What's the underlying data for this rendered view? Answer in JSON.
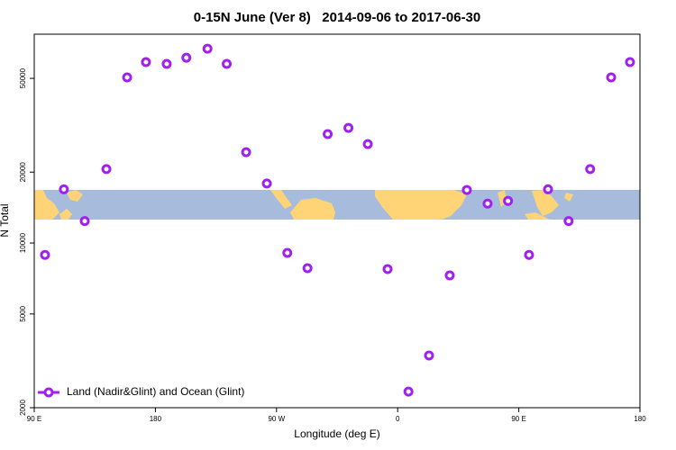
{
  "chart_data": {
    "type": "scatter",
    "title": "0-15N June (Ver 8)   2014-09-06 to 2017-06-30",
    "x_label": "Longitude (deg E)",
    "y_label": "N Total",
    "x": [
      98,
      112,
      127.5,
      143.6,
      159,
      173,
      188.4,
      203,
      218.7,
      233,
      247.4,
      262.8,
      278,
      293,
      308,
      323.4,
      337.8,
      352.5,
      368,
      383.3,
      398.7,
      411.4,
      426.8,
      442,
      457.6,
      471.7,
      487,
      503,
      518.6,
      532.6
    ],
    "series": [
      {
        "name": "Land (Nadir&Glint) and Ocean (Glint)",
        "color": "#a020f0",
        "values": [
          8900,
          16900,
          12400,
          20600,
          50500,
          58600,
          57600,
          61200,
          66800,
          57600,
          24300,
          17900,
          9080,
          7820,
          29000,
          30800,
          26300,
          7750,
          2340,
          3330,
          7290,
          16800,
          14700,
          15100,
          8900,
          16900,
          12400,
          20600,
          50500,
          58600
        ]
      }
    ],
    "xlim": [
      90,
      540
    ],
    "xticks": [
      {
        "value": 90,
        "label": "90 E"
      },
      180,
      {
        "value": 270,
        "label": "90 W"
      },
      {
        "value": 360,
        "label": "0"
      },
      {
        "value": 450,
        "label": "90 E"
      },
      {
        "value": 540,
        "label": "180"
      }
    ],
    "ylim": [
      2000,
      77000
    ],
    "yticks": [
      2000,
      5000,
      10000,
      20000,
      50000
    ],
    "log_y": true,
    "grid": false,
    "legend": "bottom-left"
  }
}
